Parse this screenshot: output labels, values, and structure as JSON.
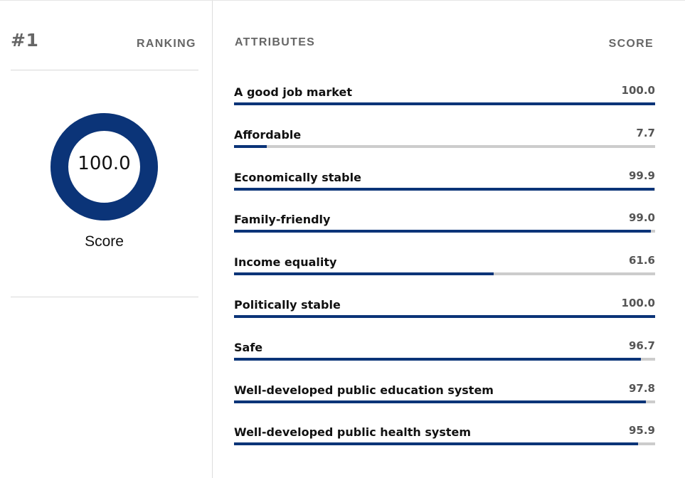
{
  "ranking": {
    "number": "#1",
    "label": "RANKING"
  },
  "overall": {
    "value": "100.0",
    "fraction": 1.0,
    "label": "Score",
    "color": "#0b3478"
  },
  "table": {
    "attributes_header": "ATTRIBUTES",
    "score_header": "SCORE",
    "bar_color": "#0b3478",
    "track_color": "#cccccc",
    "rows": [
      {
        "label": "A good job market",
        "value": "100.0",
        "percent": 100.0
      },
      {
        "label": "Affordable",
        "value": "7.7",
        "percent": 7.7
      },
      {
        "label": "Economically stable",
        "value": "99.9",
        "percent": 99.9
      },
      {
        "label": "Family-friendly",
        "value": "99.0",
        "percent": 99.0
      },
      {
        "label": "Income equality",
        "value": "61.6",
        "percent": 61.6
      },
      {
        "label": "Politically stable",
        "value": "100.0",
        "percent": 100.0
      },
      {
        "label": "Safe",
        "value": "96.7",
        "percent": 96.7
      },
      {
        "label": "Well-developed public education system",
        "value": "97.8",
        "percent": 97.8
      },
      {
        "label": "Well-developed public health system",
        "value": "95.9",
        "percent": 95.9
      }
    ]
  }
}
